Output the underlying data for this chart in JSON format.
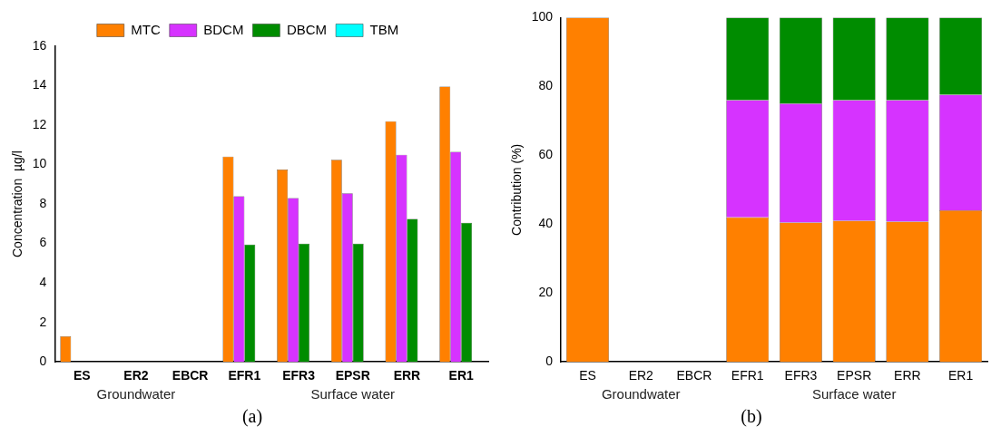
{
  "chart_data": [
    {
      "type": "bar",
      "ylabel": "Concentration  µg/l",
      "categories": [
        "ES",
        "ER2",
        "EBCR",
        "EFR1",
        "EFR3",
        "EPSR",
        "ERR",
        "ER1"
      ],
      "ylim": [
        0,
        16
      ],
      "yticks": [
        0,
        2,
        4,
        6,
        8,
        10,
        12,
        14,
        16
      ],
      "legend": "top",
      "grid": false,
      "series": [
        {
          "name": "MTC",
          "color": "#ff8000",
          "values": [
            1.3,
            0,
            0,
            10.4,
            9.75,
            10.25,
            12.2,
            13.95
          ]
        },
        {
          "name": "BDCM",
          "color": "#d633ff",
          "values": [
            0,
            0,
            0,
            8.4,
            8.3,
            8.55,
            10.5,
            10.65
          ]
        },
        {
          "name": "DBCM",
          "color": "#008c00",
          "values": [
            0,
            0,
            0,
            5.95,
            6.0,
            6.0,
            7.25,
            7.05
          ]
        },
        {
          "name": "TBM",
          "color": "#00ffff",
          "values": [
            0,
            0,
            0,
            0,
            0,
            0,
            0,
            0
          ]
        }
      ],
      "annotations": [
        "Groundwater",
        "Surface water",
        "(a)"
      ]
    },
    {
      "type": "bar",
      "stacked": true,
      "ylabel": "Contribution (%)",
      "categories": [
        "ES",
        "ER2",
        "EBCR",
        "EFR1",
        "EFR3",
        "EPSR",
        "ERR",
        "ER1"
      ],
      "ylim": [
        0,
        100
      ],
      "yticks": [
        0,
        20,
        40,
        60,
        80,
        100
      ],
      "grid": false,
      "series": [
        {
          "color": "#ff8000",
          "values": [
            100,
            0,
            0,
            42,
            40.5,
            41,
            40.7,
            44
          ]
        },
        {
          "color": "#d633ff",
          "values": [
            0,
            0,
            0,
            34,
            34.5,
            35,
            35.3,
            33.6
          ]
        },
        {
          "color": "#008c00",
          "values": [
            0,
            0,
            0,
            24,
            25,
            24,
            24,
            22.4
          ]
        }
      ],
      "annotations": [
        "Groundwater",
        "Surface water",
        "(b)"
      ]
    }
  ]
}
